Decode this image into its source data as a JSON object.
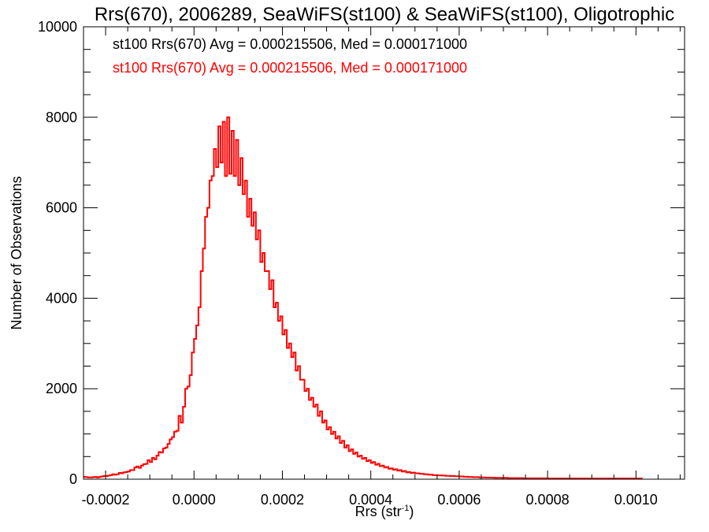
{
  "chart_data": {
    "type": "histogram",
    "title": "Rrs(670), 2006289, SeaWiFS(st100) & SeaWiFS(st100), Oligotrophic",
    "xlabel_main": "Rrs (str",
    "xlabel_sup": "-1",
    "xlabel_end": ")",
    "ylabel": "Number of Observations",
    "xlim": [
      -0.00025,
      0.00111
    ],
    "ylim": [
      0,
      10000
    ],
    "x_ticks": [
      -0.0002,
      0.0,
      0.0002,
      0.0004,
      0.0006,
      0.0008,
      0.001
    ],
    "x_tick_labels": [
      "-0.0002",
      "0.0000",
      "0.0002",
      "0.0004",
      "0.0006",
      "0.0008",
      "0.0010"
    ],
    "x_minor_step": 5e-05,
    "y_ticks": [
      0,
      2000,
      4000,
      6000,
      8000,
      10000
    ],
    "y_tick_labels": [
      "0",
      "2000",
      "4000",
      "6000",
      "8000",
      "10000"
    ],
    "y_minor_step": 500,
    "legend": [
      {
        "text": "st100 Rrs(670) Avg = 0.000215506, Med = 0.000171000",
        "color": "#000000"
      },
      {
        "text": "st100 Rrs(670) Avg = 0.000215506, Med = 0.000171000",
        "color": "#ff0000"
      }
    ],
    "series": [
      {
        "color": "#ff0000",
        "bin_start": -0.00025,
        "bin_width": 5e-06,
        "values": [
          50,
          45,
          40,
          40,
          45,
          50,
          40,
          50,
          60,
          70,
          70,
          80,
          90,
          110,
          100,
          110,
          140,
          130,
          150,
          160,
          170,
          200,
          200,
          260,
          280,
          250,
          300,
          330,
          340,
          420,
          380,
          470,
          440,
          520,
          600,
          590,
          680,
          700,
          780,
          880,
          930,
          1050,
          1070,
          1400,
          1250,
          1600,
          2000,
          2050,
          2300,
          2800,
          3100,
          3400,
          3800,
          4600,
          5100,
          5800,
          6000,
          6600,
          6700,
          7300,
          6900,
          7800,
          7000,
          7900,
          6700,
          8000,
          6750,
          7700,
          6700,
          7500,
          6500,
          7100,
          6300,
          6600,
          5800,
          6200,
          5600,
          5900,
          5300,
          5500,
          4800,
          5000,
          4600,
          4600,
          4200,
          4400,
          3800,
          3900,
          3500,
          3600,
          3200,
          3300,
          2900,
          3000,
          2700,
          2800,
          2400,
          2500,
          2200,
          2200,
          1950,
          2000,
          1750,
          1800,
          1600,
          1650,
          1400,
          1500,
          1250,
          1300,
          1100,
          1150,
          1000,
          1050,
          900,
          950,
          800,
          850,
          700,
          750,
          620,
          660,
          560,
          590,
          500,
          520,
          450,
          470,
          400,
          420,
          360,
          380,
          320,
          340,
          290,
          300,
          260,
          270,
          230,
          240,
          210,
          220,
          190,
          200,
          170,
          180,
          150,
          160,
          140,
          145,
          130,
          130,
          120,
          120,
          110,
          110,
          100,
          100,
          90,
          90,
          85,
          85,
          80,
          80,
          75,
          75,
          70,
          70,
          65,
          65,
          60,
          60,
          55,
          55,
          50,
          50,
          45,
          45,
          45,
          40,
          40,
          40,
          35,
          35,
          35,
          35,
          30,
          30,
          30,
          30,
          30,
          30,
          25,
          25,
          25,
          25,
          25,
          25,
          25,
          20,
          20,
          20,
          20,
          20,
          20,
          20,
          20,
          20,
          20,
          20,
          15,
          15,
          15,
          15,
          15,
          15,
          15,
          15,
          15,
          15,
          15,
          15,
          15,
          15,
          15,
          15,
          15,
          15,
          15,
          15,
          15,
          15,
          15,
          15,
          15,
          15,
          15,
          15,
          15,
          15,
          15,
          15,
          15,
          15,
          15,
          15,
          15,
          15,
          15,
          15,
          15,
          15,
          15
        ]
      }
    ]
  }
}
